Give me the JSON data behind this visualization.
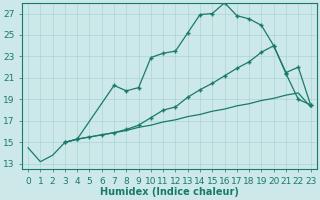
{
  "title": "",
  "xlabel": "Humidex (Indice chaleur)",
  "ylabel_ticks": [
    13,
    15,
    17,
    19,
    21,
    23,
    25,
    27
  ],
  "xlim": [
    -0.5,
    23.5
  ],
  "ylim": [
    12.5,
    28
  ],
  "bg_color": "#cce8e8",
  "grid_color": "#aad4d4",
  "line_color": "#1a7a6a",
  "xlabel_fontsize": 7,
  "tick_fontsize": 6.5,
  "line1_x": [
    0,
    1,
    2,
    3,
    4,
    5,
    6,
    7,
    8,
    9,
    10,
    11,
    12,
    13,
    14,
    15,
    16,
    17,
    18,
    19,
    20,
    21,
    22,
    23
  ],
  "line1_y": [
    14.5,
    13.2,
    13.8,
    15.0,
    15.3,
    15.5,
    15.7,
    15.9,
    16.1,
    16.4,
    16.6,
    16.9,
    17.1,
    17.4,
    17.6,
    17.9,
    18.1,
    18.4,
    18.6,
    18.9,
    19.1,
    19.4,
    19.6,
    18.3
  ],
  "line2_x": [
    3,
    4,
    7,
    8,
    9,
    10,
    11,
    12,
    13,
    14,
    15,
    16,
    17,
    18,
    19,
    20,
    21,
    22,
    23
  ],
  "line2_y": [
    15.0,
    15.3,
    20.3,
    19.8,
    20.1,
    22.9,
    23.3,
    23.5,
    25.2,
    26.9,
    27.0,
    28.0,
    26.8,
    26.5,
    25.9,
    24.0,
    21.4,
    19.0,
    18.5
  ],
  "line3_x": [
    3,
    4,
    5,
    6,
    7,
    8,
    9,
    10,
    11,
    12,
    13,
    14,
    15,
    16,
    17,
    18,
    19,
    20,
    21,
    22,
    23
  ],
  "line3_y": [
    15.0,
    15.3,
    15.5,
    15.7,
    15.9,
    16.2,
    16.6,
    17.3,
    18.0,
    18.3,
    19.2,
    19.9,
    20.5,
    21.2,
    21.9,
    22.5,
    23.4,
    24.0,
    21.5,
    22.0,
    18.5
  ]
}
